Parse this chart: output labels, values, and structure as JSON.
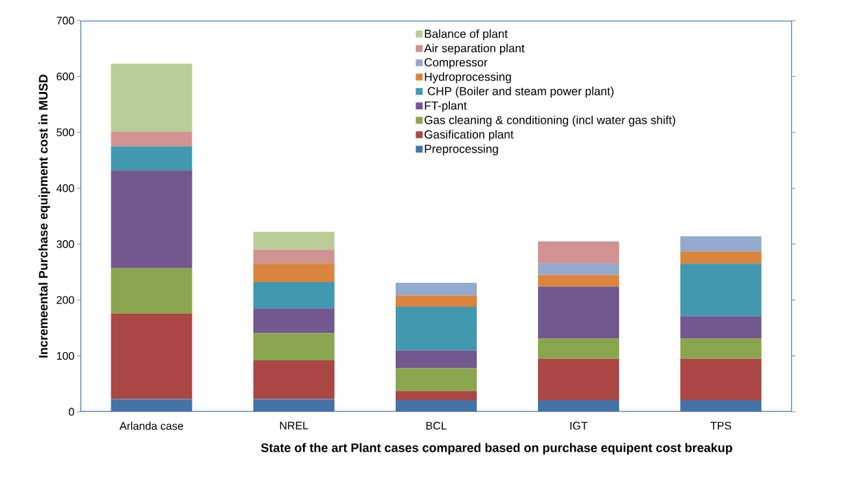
{
  "chart_data": {
    "type": "bar",
    "stacked": true,
    "xlabel": "State of the art Plant cases compared  based on purchase equipent cost breakup",
    "ylabel": "Incremeental Purchase equipment cost in MUSD",
    "categories": [
      "Arlanda case",
      "NREL",
      "BCL",
      "IGT",
      "TPS"
    ],
    "ylim": [
      0,
      700
    ],
    "yticks": [
      0,
      100,
      200,
      300,
      400,
      500,
      600,
      700
    ],
    "legend": "top",
    "grid": false,
    "series": [
      {
        "name": "Preprocessing",
        "color": "#4572a7",
        "values": [
          23,
          23,
          21,
          21,
          21
        ]
      },
      {
        "name": "Gasification plant",
        "color": "#aa4643",
        "values": [
          153,
          69,
          16,
          74,
          74
        ]
      },
      {
        "name": "Gas cleaning & conditioning (incl water gas shift)",
        "color": "#89a54e",
        "values": [
          81,
          49,
          41,
          36,
          36
        ]
      },
      {
        "name": "FT-plant",
        "color": "#71588f",
        "values": [
          175,
          44,
          32,
          93,
          40
        ]
      },
      {
        "name": " CHP (Boiler and steam power plant)",
        "color": "#4198af",
        "values": [
          43,
          47,
          78,
          0,
          94
        ]
      },
      {
        "name": "Hydroprocessing",
        "color": "#db843d",
        "values": [
          0,
          33,
          20,
          21,
          22
        ]
      },
      {
        "name": "Compressor",
        "color": "#93a9cf",
        "values": [
          0,
          0,
          23,
          20,
          27
        ]
      },
      {
        "name": "Air separation plant",
        "color": "#d19392",
        "values": [
          26,
          25,
          0,
          40,
          0
        ]
      },
      {
        "name": "Balance of plant",
        "color": "#b9cd96",
        "values": [
          122,
          32,
          0,
          0,
          0
        ]
      }
    ]
  }
}
